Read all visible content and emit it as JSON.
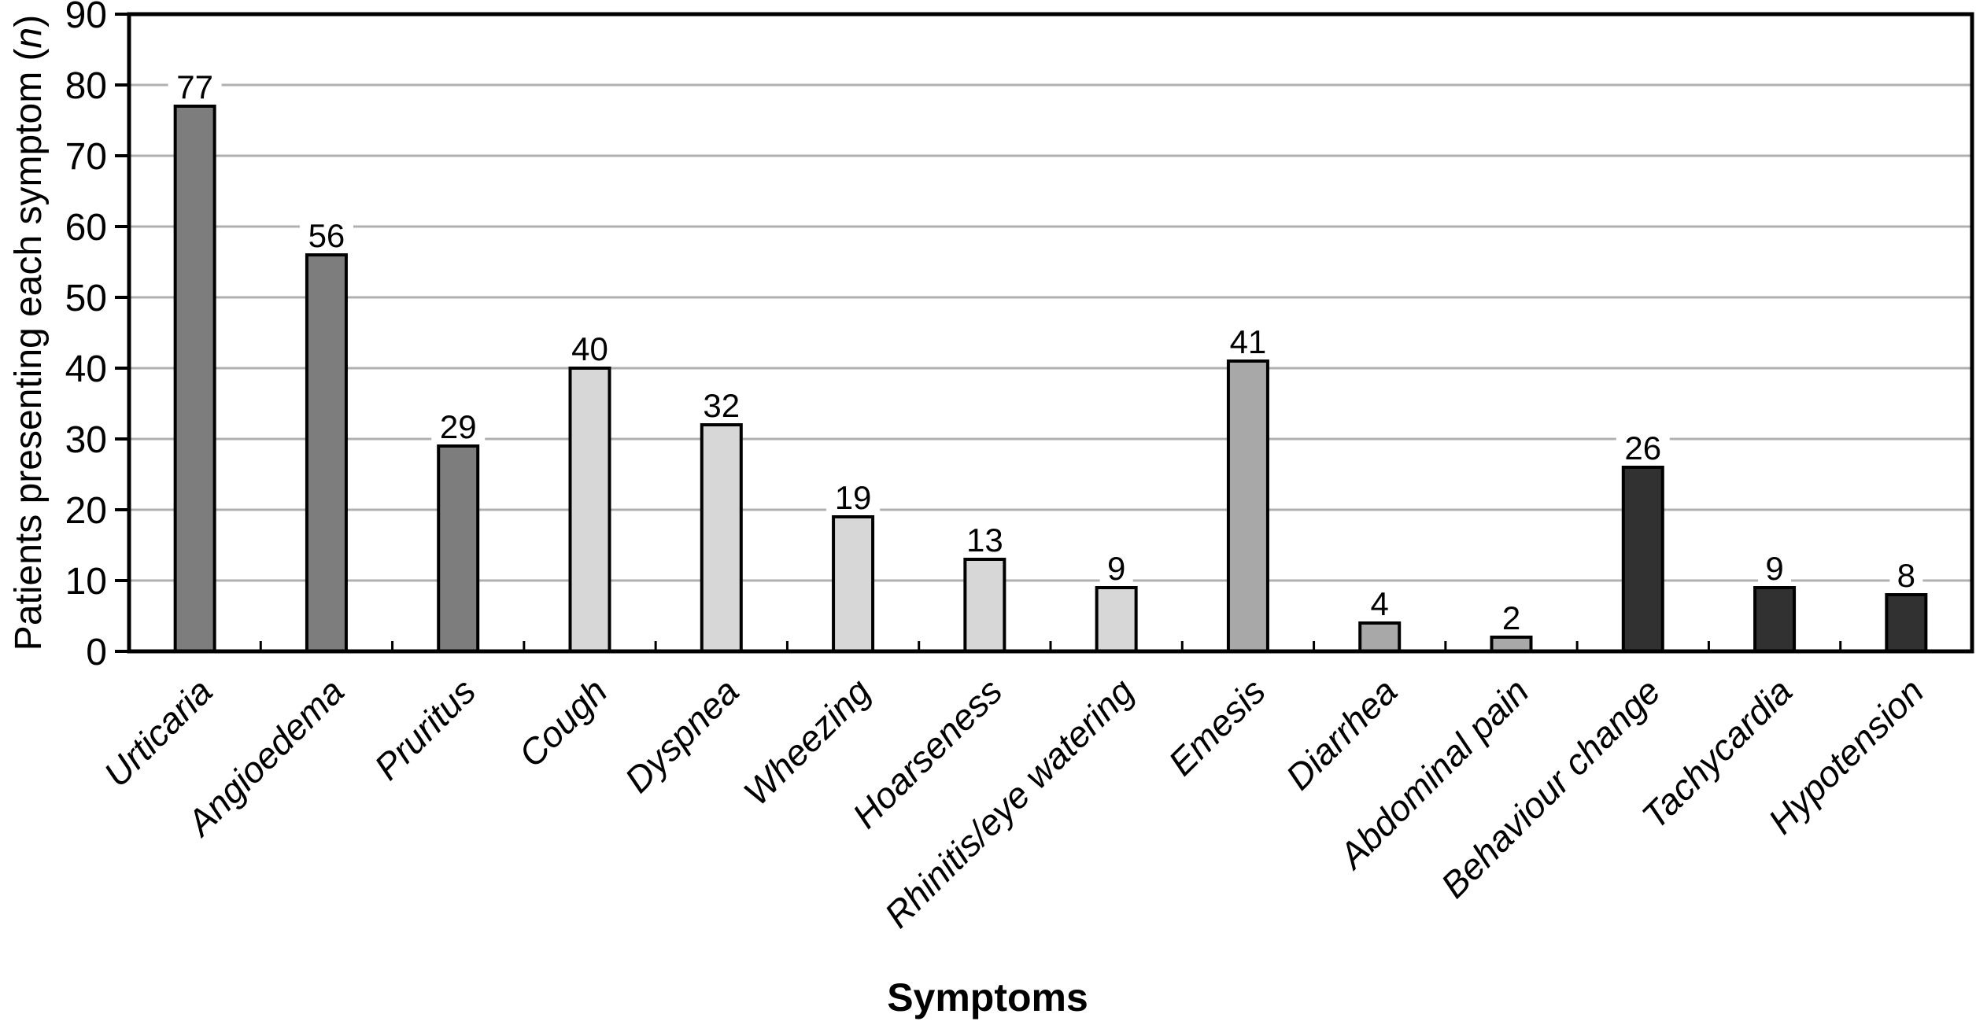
{
  "figure": {
    "background": "#ffffff"
  },
  "chart_data": {
    "type": "bar",
    "title": "",
    "xlabel": "Symptoms",
    "ylabel": "Patients presenting each symptom (n)",
    "ylabel_parts": {
      "prefix": "Patients presenting each symptom (",
      "italic": "n",
      "suffix": ")"
    },
    "categories": [
      "Urticaria",
      "Angioedema",
      "Pruritus",
      "Cough",
      "Dyspnea",
      "Wheezing",
      "Hoarseness",
      "Rhinitis/eye watering",
      "Emesis",
      "Diarrhea",
      "Abdominal pain",
      "Behaviour change",
      "Tachycardia",
      "Hypotension"
    ],
    "values": [
      77,
      56,
      29,
      40,
      32,
      19,
      13,
      9,
      41,
      4,
      2,
      26,
      9,
      8
    ],
    "bar_colors": [
      "#7d7d7d",
      "#7d7d7d",
      "#7d7d7d",
      "#d7d7d7",
      "#d7d7d7",
      "#d7d7d7",
      "#d7d7d7",
      "#d7d7d7",
      "#a8a8a8",
      "#a8a8a8",
      "#a8a8a8",
      "#313131",
      "#313131",
      "#313131"
    ],
    "bar_outline_color": "#000000",
    "ylim": [
      0,
      90
    ],
    "yticks": [
      0,
      10,
      20,
      30,
      40,
      50,
      60,
      70,
      80,
      90
    ],
    "grid": "horizontal",
    "gridline_color": "#b0b0b0",
    "frame_color": "#000000",
    "text_color": "#000000",
    "legend": "none"
  }
}
